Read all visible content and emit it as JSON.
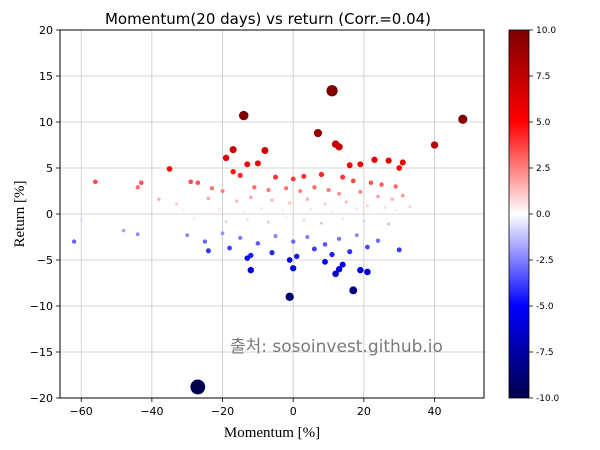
{
  "chart_data": {
    "type": "scatter",
    "title": "Momentum(20 days) vs return (Corr.=0.04)",
    "xlabel": "Momentum [%]",
    "ylabel": "Return [%]",
    "xlim": [
      -66,
      54
    ],
    "ylim": [
      -20,
      20
    ],
    "x_ticks": [
      -60,
      -40,
      -20,
      0,
      20,
      40
    ],
    "y_ticks": [
      -20,
      -15,
      -10,
      -5,
      0,
      5,
      10,
      15,
      20
    ],
    "grid": true,
    "colormap": "seismic",
    "color_range": [
      -10,
      10
    ],
    "colorbar_ticks": [
      -10.0,
      -7.5,
      -5.0,
      -2.5,
      0.0,
      2.5,
      5.0,
      7.5,
      10.0
    ],
    "watermark": "출처: sosoinvest.github.io",
    "points": [
      {
        "x": -27,
        "y": -18.8
      },
      {
        "x": 11,
        "y": 13.4
      },
      {
        "x": -14,
        "y": 10.7
      },
      {
        "x": 48,
        "y": 10.3
      },
      {
        "x": 7,
        "y": 8.8
      },
      {
        "x": 12,
        "y": 7.6
      },
      {
        "x": 13,
        "y": 7.3
      },
      {
        "x": 40,
        "y": 7.5
      },
      {
        "x": -17,
        "y": 7.0
      },
      {
        "x": -8,
        "y": 6.9
      },
      {
        "x": -19,
        "y": 6.1
      },
      {
        "x": -13,
        "y": 5.4
      },
      {
        "x": -10,
        "y": 5.5
      },
      {
        "x": 16,
        "y": 5.3
      },
      {
        "x": 19,
        "y": 5.4
      },
      {
        "x": 23,
        "y": 5.9
      },
      {
        "x": 27,
        "y": 5.8
      },
      {
        "x": 30,
        "y": 5.0
      },
      {
        "x": 31,
        "y": 5.6
      },
      {
        "x": -35,
        "y": 4.9
      },
      {
        "x": -56,
        "y": 3.5
      },
      {
        "x": -43,
        "y": 3.4
      },
      {
        "x": -44,
        "y": 2.9
      },
      {
        "x": -29,
        "y": 3.5
      },
      {
        "x": -27,
        "y": 3.4
      },
      {
        "x": -17,
        "y": 4.6
      },
      {
        "x": -15,
        "y": 4.2
      },
      {
        "x": -5,
        "y": 4.0
      },
      {
        "x": 0,
        "y": 3.8
      },
      {
        "x": 3,
        "y": 4.1
      },
      {
        "x": 8,
        "y": 4.3
      },
      {
        "x": 14,
        "y": 4.0
      },
      {
        "x": 17,
        "y": 3.6
      },
      {
        "x": 22,
        "y": 3.4
      },
      {
        "x": 25,
        "y": 3.2
      },
      {
        "x": 29,
        "y": 3.0
      },
      {
        "x": -23,
        "y": 2.8
      },
      {
        "x": -20,
        "y": 2.5
      },
      {
        "x": -11,
        "y": 2.9
      },
      {
        "x": -7,
        "y": 2.6
      },
      {
        "x": -2,
        "y": 2.8
      },
      {
        "x": 2,
        "y": 2.5
      },
      {
        "x": 6,
        "y": 2.9
      },
      {
        "x": 10,
        "y": 2.6
      },
      {
        "x": 13,
        "y": 2.2
      },
      {
        "x": 19,
        "y": 2.4
      },
      {
        "x": 24,
        "y": 1.9
      },
      {
        "x": 28,
        "y": 1.6
      },
      {
        "x": 31,
        "y": 2.0
      },
      {
        "x": -38,
        "y": 1.6
      },
      {
        "x": -33,
        "y": 1.1
      },
      {
        "x": -24,
        "y": 1.7
      },
      {
        "x": -16,
        "y": 1.4
      },
      {
        "x": -12,
        "y": 1.8
      },
      {
        "x": -6,
        "y": 1.5
      },
      {
        "x": -1,
        "y": 1.2
      },
      {
        "x": 4,
        "y": 1.6
      },
      {
        "x": 9,
        "y": 1.1
      },
      {
        "x": 15,
        "y": 1.3
      },
      {
        "x": 21,
        "y": 0.9
      },
      {
        "x": 26,
        "y": 0.7
      },
      {
        "x": 33,
        "y": 0.8
      },
      {
        "x": -60,
        "y": -0.7
      },
      {
        "x": -45,
        "y": 0.2
      },
      {
        "x": -31,
        "y": 0.4
      },
      {
        "x": -21,
        "y": 0.5
      },
      {
        "x": -14,
        "y": 0.3
      },
      {
        "x": -9,
        "y": 0.6
      },
      {
        "x": -3,
        "y": 0.4
      },
      {
        "x": 1,
        "y": 0.2
      },
      {
        "x": 5,
        "y": 0.5
      },
      {
        "x": 11,
        "y": 0.3
      },
      {
        "x": 18,
        "y": 0.6
      },
      {
        "x": 23,
        "y": 0.1
      },
      {
        "x": 29,
        "y": 0.4
      },
      {
        "x": -28,
        "y": -0.5
      },
      {
        "x": -19,
        "y": -0.8
      },
      {
        "x": -13,
        "y": -0.6
      },
      {
        "x": -7,
        "y": -0.9
      },
      {
        "x": -2,
        "y": -0.4
      },
      {
        "x": 3,
        "y": -0.7
      },
      {
        "x": 8,
        "y": -1.0
      },
      {
        "x": 14,
        "y": -0.5
      },
      {
        "x": 20,
        "y": -0.8
      },
      {
        "x": 27,
        "y": -1.1
      },
      {
        "x": -62,
        "y": -3.0
      },
      {
        "x": -48,
        "y": -1.8
      },
      {
        "x": -44,
        "y": -2.2
      },
      {
        "x": -30,
        "y": -2.3
      },
      {
        "x": -25,
        "y": -3.0
      },
      {
        "x": -20,
        "y": -2.1
      },
      {
        "x": -15,
        "y": -2.6
      },
      {
        "x": -10,
        "y": -3.2
      },
      {
        "x": -5,
        "y": -2.4
      },
      {
        "x": 0,
        "y": -3.0
      },
      {
        "x": 4,
        "y": -2.5
      },
      {
        "x": 9,
        "y": -3.3
      },
      {
        "x": 13,
        "y": -2.7
      },
      {
        "x": 18,
        "y": -2.3
      },
      {
        "x": 24,
        "y": -2.9
      },
      {
        "x": 30,
        "y": -3.9
      },
      {
        "x": -24,
        "y": -4.0
      },
      {
        "x": -18,
        "y": -3.7
      },
      {
        "x": -12,
        "y": -4.5
      },
      {
        "x": -6,
        "y": -4.2
      },
      {
        "x": 1,
        "y": -4.6
      },
      {
        "x": 6,
        "y": -3.8
      },
      {
        "x": 11,
        "y": -4.4
      },
      {
        "x": 16,
        "y": -4.1
      },
      {
        "x": 21,
        "y": -3.6
      },
      {
        "x": -13,
        "y": -4.8
      },
      {
        "x": -1,
        "y": -5.0
      },
      {
        "x": 9,
        "y": -5.2
      },
      {
        "x": 14,
        "y": -5.5
      },
      {
        "x": -12,
        "y": -6.1
      },
      {
        "x": 0,
        "y": -5.9
      },
      {
        "x": 12,
        "y": -6.5
      },
      {
        "x": 13,
        "y": -6.0
      },
      {
        "x": 19,
        "y": -6.1
      },
      {
        "x": 21,
        "y": -6.3
      },
      {
        "x": 17,
        "y": -8.3
      },
      {
        "x": -1,
        "y": -9.0
      }
    ]
  }
}
